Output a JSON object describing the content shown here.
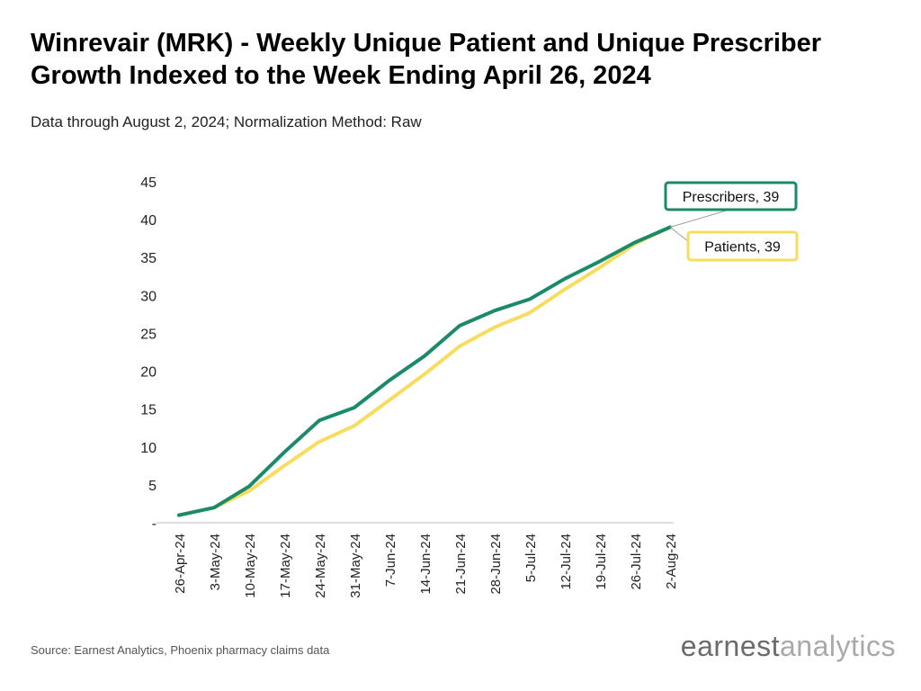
{
  "title": "Winrevair (MRK) - Weekly Unique Patient and Unique Prescriber Growth Indexed to the Week Ending April 26, 2024",
  "subtitle": "Data through August 2, 2024; Normalization Method: Raw",
  "source": "Source: Earnest Analytics, Phoenix pharmacy claims data",
  "logo": {
    "part1": "earnest",
    "part2": "analytics"
  },
  "chart_data": {
    "type": "line",
    "x": [
      "26-Apr-24",
      "3-May-24",
      "10-May-24",
      "17-May-24",
      "24-May-24",
      "31-May-24",
      "7-Jun-24",
      "14-Jun-24",
      "21-Jun-24",
      "28-Jun-24",
      "5-Jul-24",
      "12-Jul-24",
      "19-Jul-24",
      "26-Jul-24",
      "2-Aug-24"
    ],
    "series": [
      {
        "name": "Prescribers",
        "color": "#1b8a6b",
        "values": [
          1,
          2,
          4.8,
          9.3,
          13.5,
          15.2,
          18.8,
          22,
          26,
          28,
          29.5,
          32.2,
          34.5,
          37,
          39
        ]
      },
      {
        "name": "Patients",
        "color": "#f7dc5e",
        "values": [
          1,
          2,
          4.2,
          7.5,
          10.7,
          12.8,
          16.2,
          19.6,
          23.3,
          25.8,
          27.7,
          30.8,
          33.7,
          36.8,
          39
        ]
      }
    ],
    "labels": [
      {
        "series": "Prescribers",
        "text": "Prescribers,  39"
      },
      {
        "series": "Patients",
        "text": "Patients,  39"
      }
    ],
    "ylim": [
      0,
      45
    ],
    "yticks": [
      "-",
      "5",
      "10",
      "15",
      "20",
      "25",
      "30",
      "35",
      "40",
      "45"
    ],
    "grid": false
  }
}
